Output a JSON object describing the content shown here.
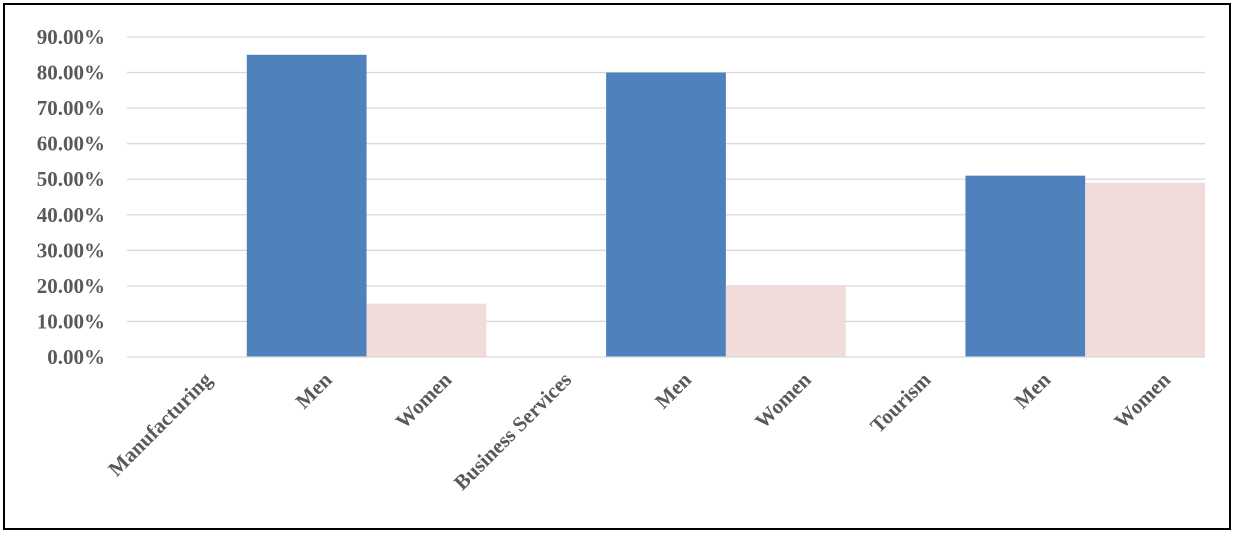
{
  "chart_data": {
    "type": "bar",
    "title": "",
    "xlabel": "",
    "ylabel": "",
    "categories": [
      "Manufacturing",
      "Men",
      "Women",
      "Business Services",
      "Men",
      "Women",
      "Tourism",
      "Men",
      "Women"
    ],
    "values": [
      null,
      0.85,
      0.15,
      null,
      0.8,
      0.2,
      null,
      0.51,
      0.49
    ],
    "ylim": [
      0,
      0.9
    ],
    "yticks": [
      "0.00%",
      "10.00%",
      "20.00%",
      "30.00%",
      "40.00%",
      "50.00%",
      "60.00%",
      "70.00%",
      "80.00%",
      "90.00%"
    ],
    "grid": true,
    "legend": "none",
    "colors": {
      "Men": "#4f81bd",
      "Women": "#f2dcdb",
      "grid": "#d9d9d9",
      "text": "#595959"
    }
  }
}
